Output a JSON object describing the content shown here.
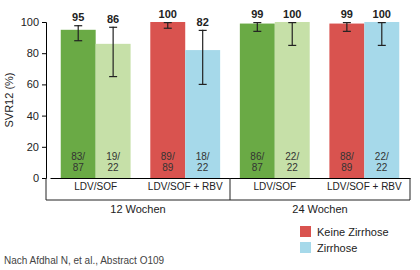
{
  "chart_data": {
    "type": "bar",
    "y_label": "SVR12 (%)",
    "categories": [
      "LDV/SOF",
      "LDV/SOF + RBV",
      "LDV/SOF",
      "LDV/SOF + RBV"
    ],
    "group_labels": [
      "12 Wochen",
      "24 Wochen"
    ],
    "series": [
      {
        "name": "Keine Zirrhose",
        "color": "#d9534f",
        "colors": [
          "#6aaa45",
          "#d9534f",
          "#6aaa45",
          "#d9534f"
        ],
        "values": [
          95,
          100,
          99,
          99
        ],
        "error_minus": [
          7,
          4,
          5,
          5
        ],
        "error_plus": [
          3,
          0,
          1,
          1
        ],
        "fractions": [
          "83/87",
          "89/89",
          "86/87",
          "88/89"
        ]
      },
      {
        "name": "Zirrhose",
        "color": "#a6d9ea",
        "colors": [
          "#c6e0a8",
          "#a6d9ea",
          "#c6e0a8",
          "#a6d9ea"
        ],
        "values": [
          86,
          82,
          100,
          100
        ],
        "error_minus": [
          21,
          22,
          15,
          15
        ],
        "error_plus": [
          11,
          13,
          0,
          0
        ],
        "fractions": [
          "19/22",
          "18/22",
          "22/22",
          "22/22"
        ]
      }
    ],
    "ylim": [
      0,
      100
    ],
    "yticks": [
      0,
      20,
      40,
      60,
      80,
      100
    ],
    "grid": false,
    "data_labels": true,
    "legend": "bottom-right",
    "source": "Nach Afdhal N, et al., Abstract O109"
  }
}
